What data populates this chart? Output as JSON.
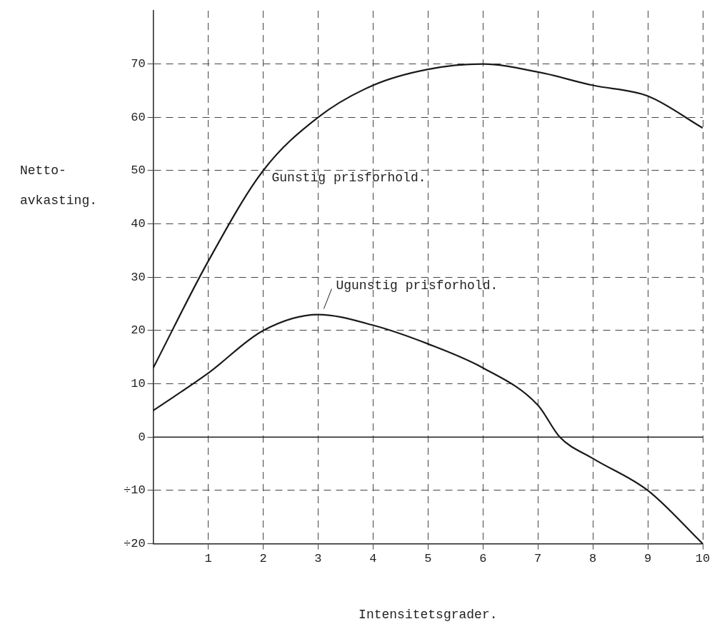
{
  "chart_data": {
    "type": "line",
    "xlabel": "Intensitetsgrader.",
    "ylabel": "Netto-\navkasting.",
    "x": [
      0,
      1,
      2,
      3,
      4,
      5,
      6,
      7,
      7.4,
      8,
      9,
      10
    ],
    "series": [
      {
        "name": "Gunstig prisforhold.",
        "color": "#1a1a1a",
        "values": [
          13,
          33,
          50,
          60,
          66,
          69,
          70,
          68.5,
          null,
          66,
          64,
          58
        ]
      },
      {
        "name": "Ugunstig prisforhold.",
        "color": "#1a1a1a",
        "values": [
          5,
          12,
          20,
          23,
          21,
          17.5,
          13,
          6,
          0,
          -4,
          -10,
          -20
        ]
      }
    ],
    "xlim": [
      0,
      10
    ],
    "xticks": [
      1,
      2,
      3,
      4,
      5,
      6,
      7,
      8,
      9,
      10
    ],
    "ylim": [
      -20,
      80
    ],
    "yticks": [
      {
        "value": -20,
        "label": "÷20"
      },
      {
        "value": -10,
        "label": "÷10"
      },
      0,
      10,
      20,
      30,
      40,
      50,
      60,
      70
    ],
    "ref_lines": [
      {
        "axis": "y",
        "value": 0,
        "line_style": "solid"
      }
    ],
    "grid": true,
    "legend": false,
    "marker": "none",
    "line_style": "solid"
  }
}
